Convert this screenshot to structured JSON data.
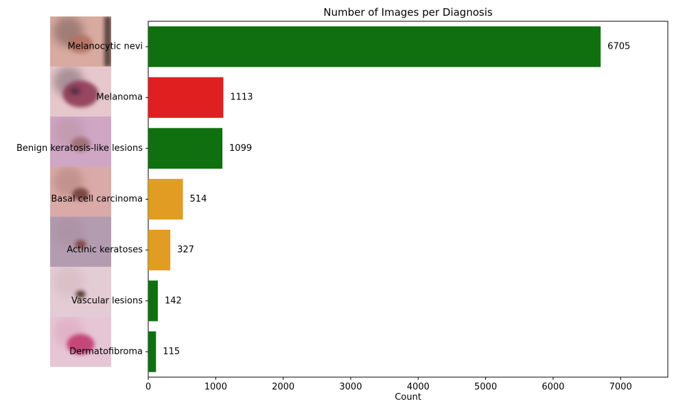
{
  "chart_data": {
    "type": "bar",
    "orientation": "horizontal",
    "title": "Number of Images per Diagnosis",
    "xlabel": "Count",
    "ylabel": "",
    "xlim": [
      0,
      7700
    ],
    "xticks": [
      "0",
      "1000",
      "2000",
      "3000",
      "4000",
      "5000",
      "6000",
      "7000"
    ],
    "xtick_values": [
      0,
      1000,
      2000,
      3000,
      4000,
      5000,
      6000,
      7000
    ],
    "categories": [
      "Melanocytic nevi",
      "Melanoma",
      "Benign keratosis-like lesions",
      "Basal cell carcinoma",
      "Actinic keratoses",
      "Vascular lesions",
      "Dermatofibroma"
    ],
    "values": [
      6705,
      1113,
      1099,
      514,
      327,
      142,
      115
    ],
    "value_labels": [
      "6705",
      "1113",
      "1099",
      "514",
      "327",
      "142",
      "115"
    ],
    "bar_colors": [
      "#107010",
      "#e02020",
      "#107010",
      "#e19c24",
      "#e19c24",
      "#107010",
      "#107010"
    ],
    "thumbnails": [
      {
        "bg": "#d8aaa0",
        "lesion": "#b07060",
        "accent": "#3a2a2c"
      },
      {
        "bg": "#e6c8cc",
        "lesion": "#8a3050",
        "accent": "#3a2a3a"
      },
      {
        "bg": "#cfa6c4",
        "lesion": "#9a6a70",
        "accent": "#b08890"
      },
      {
        "bg": "#d9aaa8",
        "lesion": "#6a3a34",
        "accent": "#9a6a60"
      },
      {
        "bg": "#b49cb0",
        "lesion": "#7a3a34",
        "accent": "#a08496"
      },
      {
        "bg": "#e4ccd4",
        "lesion": "#3a1e18",
        "accent": "#c8a8b0"
      },
      {
        "bg": "#e6c6d4",
        "lesion": "#c0306a",
        "accent": "#d890b0"
      }
    ],
    "grid": false,
    "legend": "none"
  }
}
